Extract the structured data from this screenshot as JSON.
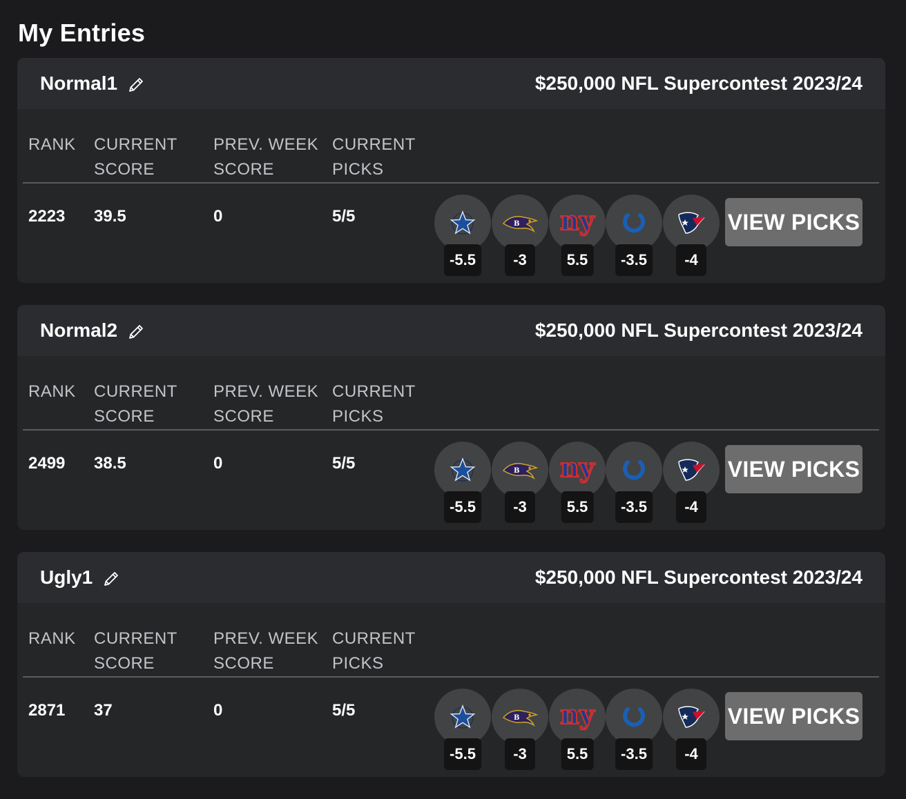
{
  "page": {
    "title": "My Entries"
  },
  "columns": {
    "rank": "RANK",
    "current_score": [
      "CURRENT",
      "SCORE"
    ],
    "prev_week_score": [
      "PREV. WEEK",
      "SCORE"
    ],
    "current_picks": [
      "CURRENT",
      "PICKS"
    ]
  },
  "view_picks_label": "VIEW PICKS",
  "colors": {
    "page_bg": "#1b1b1d",
    "card_bg": "#252628",
    "card_header_bg": "#2b2c2f",
    "button_bg": "#6d6d6d",
    "spread_bg": "#141415"
  },
  "entries": [
    {
      "name": "Normal1",
      "contest": "$250,000 NFL Supercontest 2023/24",
      "rank": "2223",
      "current_score": "39.5",
      "prev_week_score": "0",
      "current_picks": "5/5",
      "picks": [
        {
          "team": "cowboys-logo-icon",
          "spread": "-5.5"
        },
        {
          "team": "ravens-logo-icon",
          "spread": "-3"
        },
        {
          "team": "giants-logo-icon",
          "spread": "5.5"
        },
        {
          "team": "colts-logo-icon",
          "spread": "-3.5"
        },
        {
          "team": "texans-logo-icon",
          "spread": "-4"
        }
      ]
    },
    {
      "name": "Normal2",
      "contest": "$250,000 NFL Supercontest 2023/24",
      "rank": "2499",
      "current_score": "38.5",
      "prev_week_score": "0",
      "current_picks": "5/5",
      "picks": [
        {
          "team": "cowboys-logo-icon",
          "spread": "-5.5"
        },
        {
          "team": "ravens-logo-icon",
          "spread": "-3"
        },
        {
          "team": "giants-logo-icon",
          "spread": "5.5"
        },
        {
          "team": "colts-logo-icon",
          "spread": "-3.5"
        },
        {
          "team": "texans-logo-icon",
          "spread": "-4"
        }
      ]
    },
    {
      "name": "Ugly1",
      "contest": "$250,000 NFL Supercontest 2023/24",
      "rank": "2871",
      "current_score": "37",
      "prev_week_score": "0",
      "current_picks": "5/5",
      "picks": [
        {
          "team": "cowboys-logo-icon",
          "spread": "-5.5"
        },
        {
          "team": "ravens-logo-icon",
          "spread": "-3"
        },
        {
          "team": "giants-logo-icon",
          "spread": "5.5"
        },
        {
          "team": "colts-logo-icon",
          "spread": "-3.5"
        },
        {
          "team": "texans-logo-icon",
          "spread": "-4"
        }
      ]
    }
  ]
}
